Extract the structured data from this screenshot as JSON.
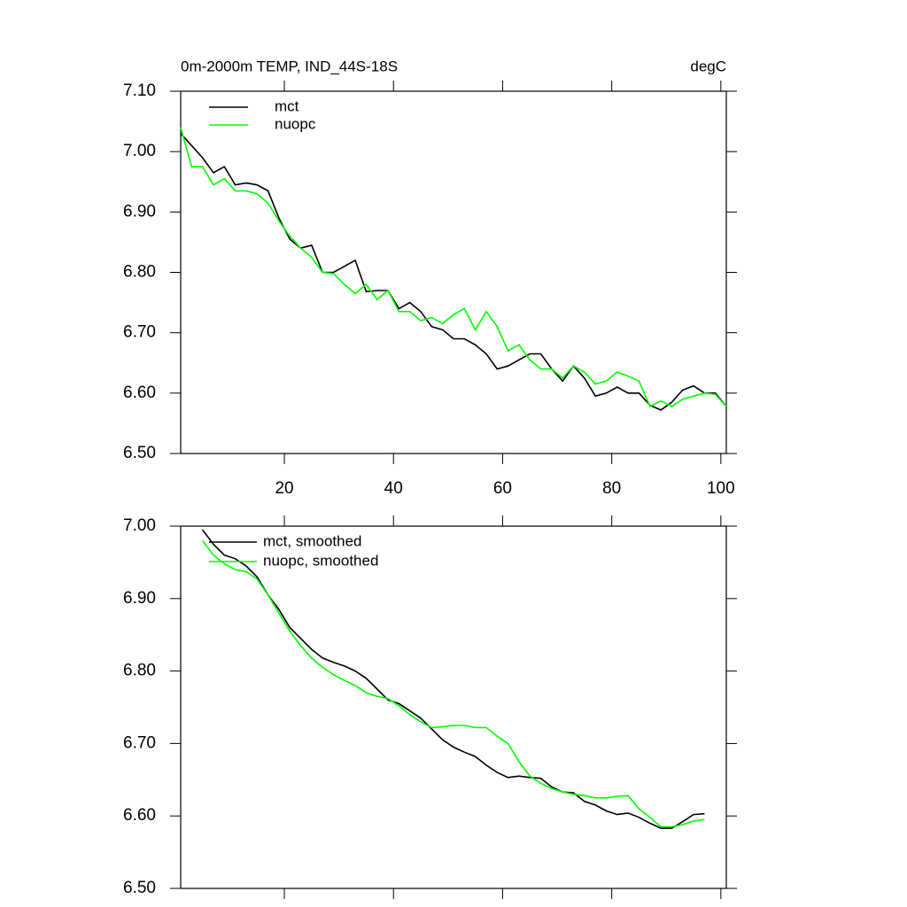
{
  "chart_data": [
    {
      "type": "line",
      "title": "0m-2000m TEMP, IND_44S-18S",
      "units": "degC",
      "x": [
        1,
        3,
        5,
        7,
        9,
        11,
        13,
        15,
        17,
        19,
        21,
        23,
        25,
        27,
        29,
        31,
        33,
        35,
        37,
        39,
        41,
        43,
        45,
        47,
        49,
        51,
        53,
        55,
        57,
        59,
        61,
        63,
        65,
        67,
        69,
        71,
        73,
        75,
        77,
        79,
        81,
        83,
        85,
        87,
        89,
        91,
        93,
        95,
        97,
        99,
        101
      ],
      "series": [
        {
          "name": "mct",
          "color": "#000000",
          "values": [
            7.03,
            7.01,
            6.99,
            6.965,
            6.975,
            6.945,
            6.948,
            6.945,
            6.935,
            6.89,
            6.855,
            6.84,
            6.845,
            6.8,
            6.8,
            6.81,
            6.82,
            6.768,
            6.77,
            6.77,
            6.74,
            6.75,
            6.735,
            6.71,
            6.705,
            6.69,
            6.69,
            6.68,
            6.665,
            6.64,
            6.645,
            6.655,
            6.665,
            6.665,
            6.64,
            6.62,
            6.645,
            6.625,
            6.595,
            6.6,
            6.61,
            6.6,
            6.6,
            6.58,
            6.572,
            6.585,
            6.605,
            6.612,
            6.6,
            6.6,
            6.578
          ]
        },
        {
          "name": "nuopc",
          "color": "#00ff00",
          "values": [
            7.04,
            6.975,
            6.975,
            6.945,
            6.955,
            6.935,
            6.935,
            6.93,
            6.915,
            6.885,
            6.86,
            6.84,
            6.825,
            6.8,
            6.798,
            6.78,
            6.765,
            6.78,
            6.755,
            6.77,
            6.735,
            6.735,
            6.72,
            6.725,
            6.715,
            6.73,
            6.74,
            6.705,
            6.735,
            6.71,
            6.67,
            6.68,
            6.655,
            6.64,
            6.64,
            6.625,
            6.645,
            6.635,
            6.615,
            6.62,
            6.635,
            6.628,
            6.62,
            6.578,
            6.587,
            6.578,
            6.59,
            6.595,
            6.6,
            6.598,
            6.578
          ]
        }
      ],
      "xlim": [
        1,
        101
      ],
      "xticks": [
        20,
        40,
        60,
        80,
        100
      ],
      "ylim": [
        6.5,
        7.1
      ],
      "yticks": [
        {
          "value": 6.5,
          "label": "6.50"
        },
        {
          "value": 6.6,
          "label": "6.60"
        },
        {
          "value": 6.7,
          "label": "6.70"
        },
        {
          "value": 6.8,
          "label": "6.80"
        },
        {
          "value": 6.9,
          "label": "6.90"
        },
        {
          "value": 7.0,
          "label": "7.00"
        },
        {
          "value": 7.1,
          "label": "7.10"
        }
      ],
      "legend": "upper left"
    },
    {
      "type": "line",
      "x": [
        5,
        7,
        9,
        11,
        13,
        15,
        17,
        19,
        21,
        23,
        25,
        27,
        29,
        31,
        33,
        35,
        37,
        39,
        41,
        43,
        45,
        47,
        49,
        51,
        53,
        55,
        57,
        59,
        61,
        63,
        65,
        67,
        69,
        71,
        73,
        75,
        77,
        79,
        81,
        83,
        85,
        87,
        89,
        91,
        93,
        95,
        97
      ],
      "series": [
        {
          "name": "mct, smoothed",
          "color": "#000000",
          "values": [
            6.995,
            6.975,
            6.96,
            6.955,
            6.945,
            6.93,
            6.905,
            6.885,
            6.86,
            6.845,
            6.83,
            6.818,
            6.812,
            6.807,
            6.8,
            6.79,
            6.775,
            6.76,
            6.755,
            6.745,
            6.735,
            6.72,
            6.705,
            6.695,
            6.688,
            6.682,
            6.67,
            6.66,
            6.653,
            6.655,
            6.653,
            6.652,
            6.64,
            6.633,
            6.632,
            6.62,
            6.615,
            6.607,
            6.602,
            6.604,
            6.598,
            6.59,
            6.583,
            6.583,
            6.592,
            6.602,
            6.603
          ]
        },
        {
          "name": "nuopc, smoothed",
          "color": "#00ff00",
          "values": [
            6.98,
            6.96,
            6.948,
            6.94,
            6.937,
            6.927,
            6.905,
            6.88,
            6.855,
            6.835,
            6.818,
            6.805,
            6.795,
            6.787,
            6.78,
            6.77,
            6.765,
            6.762,
            6.752,
            6.74,
            6.73,
            6.722,
            6.723,
            6.725,
            6.725,
            6.722,
            6.722,
            6.71,
            6.7,
            6.675,
            6.655,
            6.645,
            6.638,
            6.633,
            6.63,
            6.628,
            6.625,
            6.625,
            6.627,
            6.628,
            6.61,
            6.598,
            6.585,
            6.585,
            6.588,
            6.593,
            6.595
          ]
        }
      ],
      "xlim": [
        1,
        101
      ],
      "ylim": [
        6.5,
        7.0
      ],
      "yticks": [
        {
          "value": 6.5,
          "label": "6.50"
        },
        {
          "value": 6.6,
          "label": "6.60"
        },
        {
          "value": 6.7,
          "label": "6.70"
        },
        {
          "value": 6.8,
          "label": "6.80"
        },
        {
          "value": 6.9,
          "label": "6.90"
        },
        {
          "value": 7.0,
          "label": "7.00"
        }
      ],
      "legend": "upper left"
    }
  ]
}
